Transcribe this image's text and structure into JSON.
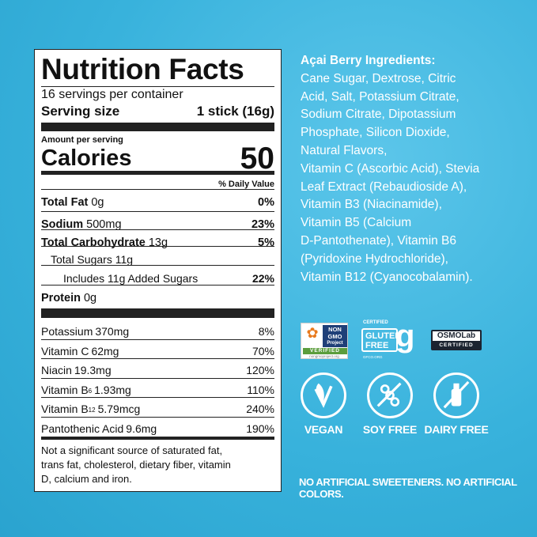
{
  "label": {
    "title": "Nutrition Facts",
    "servings": "16 servings per container",
    "serving_size_label": "Serving size",
    "serving_size_value": "1 stick (16g)",
    "amount_per_serving": "Amount per serving",
    "calories_label": "Calories",
    "calories_value": "50",
    "daily_value_header": "% Daily Value",
    "rows": [
      {
        "name": "Total Fat",
        "amount": "0g",
        "dv": "0%"
      },
      {
        "name": "Sodium",
        "amount": "500mg",
        "dv": "23%"
      },
      {
        "name": "Total Carbohydrate",
        "amount": "13g",
        "dv": "5%"
      },
      {
        "name": "Total Sugars 11g",
        "amount": "",
        "dv": ""
      },
      {
        "name": "Includes 11g Added Sugars",
        "amount": "",
        "dv": "22%"
      },
      {
        "name": "Protein",
        "amount": "0g",
        "dv": ""
      }
    ],
    "vitamins": [
      {
        "name": "Potassium",
        "amount": "370mg",
        "dv": "8%"
      },
      {
        "name": "Vitamin C",
        "amount": "62mg",
        "dv": "70%"
      },
      {
        "name": "Niacin",
        "amount": "19.3mg",
        "dv": "120%"
      },
      {
        "name": "Vitamin B",
        "sub": "6",
        "amount": "1.93mg",
        "dv": "110%"
      },
      {
        "name": "Vitamin B",
        "sub": "12",
        "amount": "5.79mcg",
        "dv": "240%"
      },
      {
        "name": "Pantothenic Acid",
        "amount": "9.6mg",
        "dv": "190%"
      }
    ],
    "footnote": [
      "Not a significant source of saturated fat,",
      "trans fat, cholesterol, dietary fiber, vitamin",
      "D, calcium and iron."
    ]
  },
  "ingredients": {
    "heading": "Açai Berry Ingredients:",
    "lines": [
      "Cane Sugar, Dextrose, Citric",
      "Acid, Salt, Potassium Citrate,",
      "Sodium Citrate, Dipotassium",
      "Phosphate, Silicon Dioxide,",
      "Natural Flavors,",
      "Vitamin C (Ascorbic Acid), Stevia",
      "Leaf Extract (Rebaudioside A),",
      "Vitamin B3 (Niacinamide),",
      "Vitamin B5 (Calcium",
      "D-Pantothenate), Vitamin B6",
      "(Pyridoxine Hydrochloride),",
      "Vitamin B12 (Cyanocobalamin)."
    ]
  },
  "certifications": {
    "nongmo": {
      "top": "NON GMO",
      "project": "Project",
      "verified": "VERIFIED",
      "url": "nongmoproject.org"
    },
    "gluten": {
      "certified": "CERTIFIED",
      "text1": "GLUTEN",
      "text2": "FREE",
      "url": "GFCO.ORG"
    },
    "osmo": {
      "brand": "OSMOLab",
      "certified": "CERTIFIED"
    }
  },
  "claims": [
    {
      "icon": "vegan-leaf-icon",
      "label": "VEGAN"
    },
    {
      "icon": "no-soy-icon",
      "label": "SOY FREE"
    },
    {
      "icon": "no-dairy-icon",
      "label": "DAIRY FREE"
    }
  ],
  "tagline": "NO ARTIFICIAL SWEETENERS. NO ARTIFICIAL COLORS.",
  "colors": {
    "background": "#38b2dc",
    "label": "#ffffff",
    "text": "#111111"
  }
}
